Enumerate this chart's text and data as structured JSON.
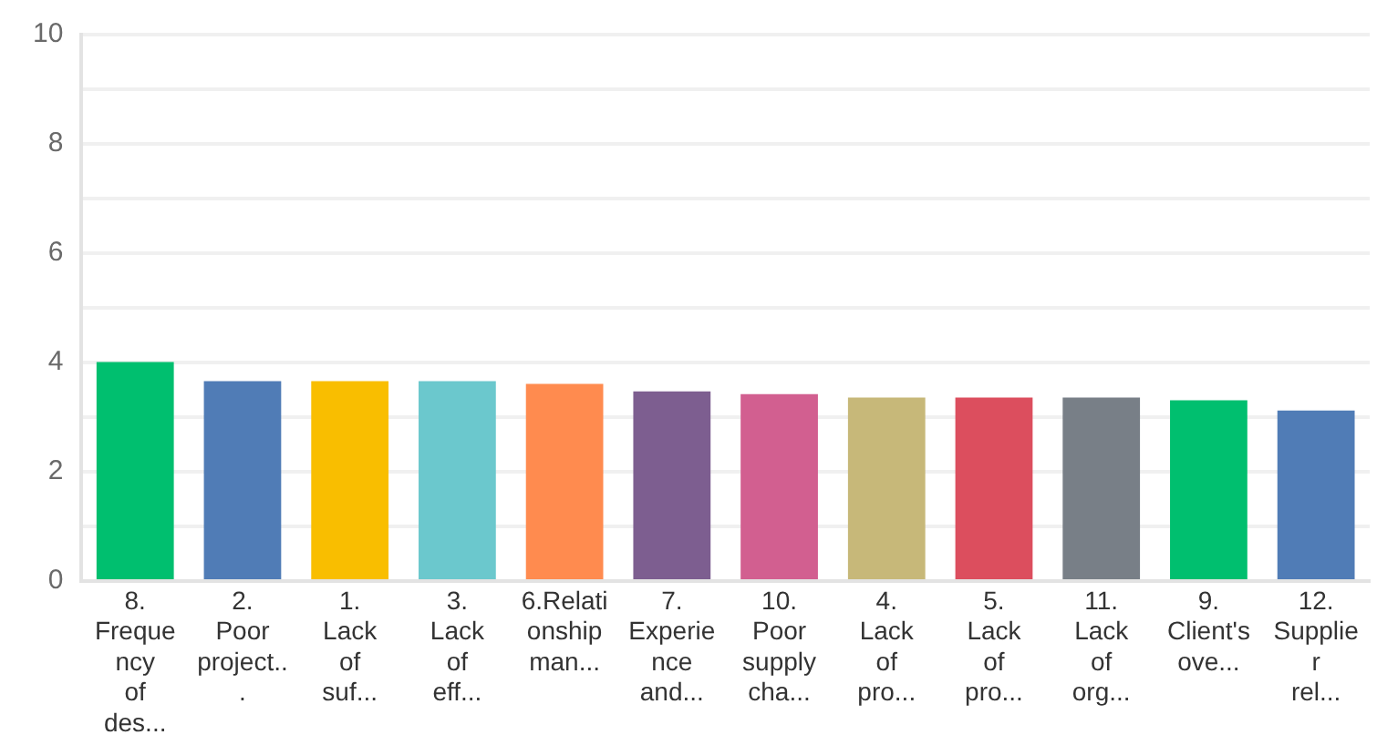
{
  "chart_data": {
    "type": "bar",
    "categories": [
      "8. Frequency of des...",
      "2. Poor project...",
      "1. Lack of suf...",
      "3. Lack of eff...",
      "6.Relationship man...",
      "7. Experience and...",
      "10. Poor supply cha...",
      "4. Lack of pro...",
      "5. Lack of pro...",
      "11. Lack of org...",
      "9. Client's ove...",
      "12. Supplier rel..."
    ],
    "values": [
      4.01,
      3.66,
      3.66,
      3.66,
      3.61,
      3.47,
      3.42,
      3.36,
      3.36,
      3.36,
      3.31,
      3.12
    ],
    "colors": [
      "#00bf6f",
      "#507cb6",
      "#f9be00",
      "#6bc8cd",
      "#ff8b4f",
      "#7d5e90",
      "#d25f90",
      "#c7b879",
      "#dc4e5e",
      "#787f87",
      "#00bf6f",
      "#507cb6"
    ],
    "ylim": [
      0,
      10
    ],
    "yticks": [
      0,
      {
        "value": 1,
        "label": null
      },
      2,
      {
        "value": 3,
        "label": null
      },
      4,
      {
        "value": 5,
        "label": null
      },
      6,
      {
        "value": 7,
        "label": null
      },
      8,
      {
        "value": 9,
        "label": null
      },
      10
    ],
    "grid": true,
    "legend": false
  }
}
